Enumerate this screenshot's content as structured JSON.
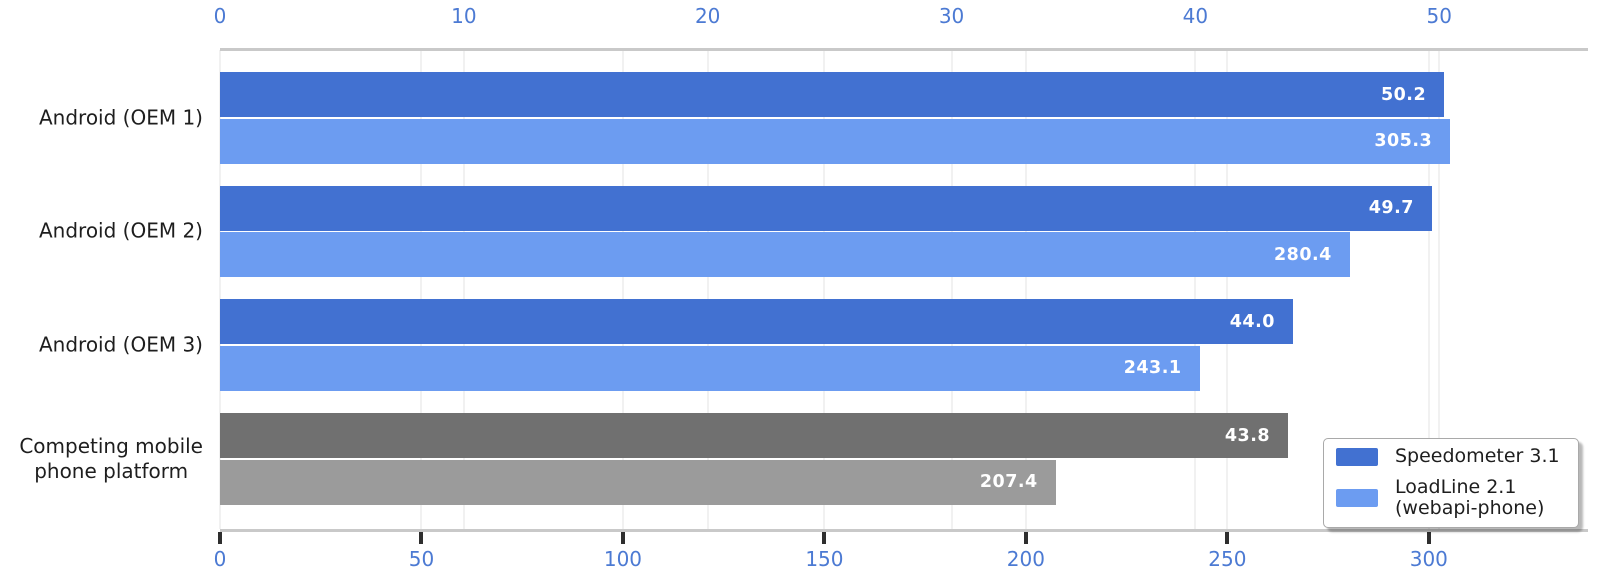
{
  "chart_data": {
    "type": "bar",
    "orientation": "horizontal",
    "categories": [
      "Android (OEM 1)",
      "Android (OEM 2)",
      "Android (OEM 3)",
      "Competing mobile\nphone platform"
    ],
    "series": [
      {
        "name": "Speedometer 3.1",
        "axis": "top",
        "values": [
          50.2,
          49.7,
          44.0,
          43.8
        ],
        "value_labels": [
          "50.2",
          "49.7",
          "44.0",
          "43.8"
        ],
        "bar_colors": [
          "#4271d1",
          "#4271d1",
          "#4271d1",
          "#707070"
        ]
      },
      {
        "name": "LoadLine 2.1\n(webapi-phone)",
        "axis": "bottom",
        "values": [
          305.3,
          280.4,
          243.1,
          207.4
        ],
        "value_labels": [
          "305.3",
          "280.4",
          "243.1",
          "207.4"
        ],
        "bar_colors": [
          "#6c9cf1",
          "#6c9cf1",
          "#6c9cf1",
          "#9b9b9b"
        ]
      }
    ],
    "top_axis": {
      "tick_labels": [
        "0",
        "10",
        "20",
        "30",
        "40",
        "50"
      ],
      "tick_values": [
        0,
        10,
        20,
        30,
        40,
        50
      ],
      "range": [
        0,
        56.1
      ],
      "grid": true
    },
    "bottom_axis": {
      "tick_labels": [
        "0",
        "50",
        "100",
        "150",
        "200",
        "250",
        "300"
      ],
      "tick_values": [
        0,
        50,
        100,
        150,
        200,
        250,
        300
      ],
      "range": [
        0,
        339.5
      ],
      "grid": true
    },
    "legend": {
      "position": "lower-right",
      "entries": [
        {
          "label": "Speedometer 3.1",
          "color": "#4271d1"
        },
        {
          "label": "LoadLine 2.1\n(webapi-phone)",
          "color": "#6c9cf1"
        }
      ]
    },
    "colors": {
      "tick_label": "#4c7ad3",
      "category_label": "#1e1e1e",
      "axis_line": "#c9c9c9",
      "tick_mark": "#2e2e2e",
      "gridline": "#f1f1f1",
      "value_label": "#ffffff",
      "legend_text": "#1e1e1e"
    }
  }
}
